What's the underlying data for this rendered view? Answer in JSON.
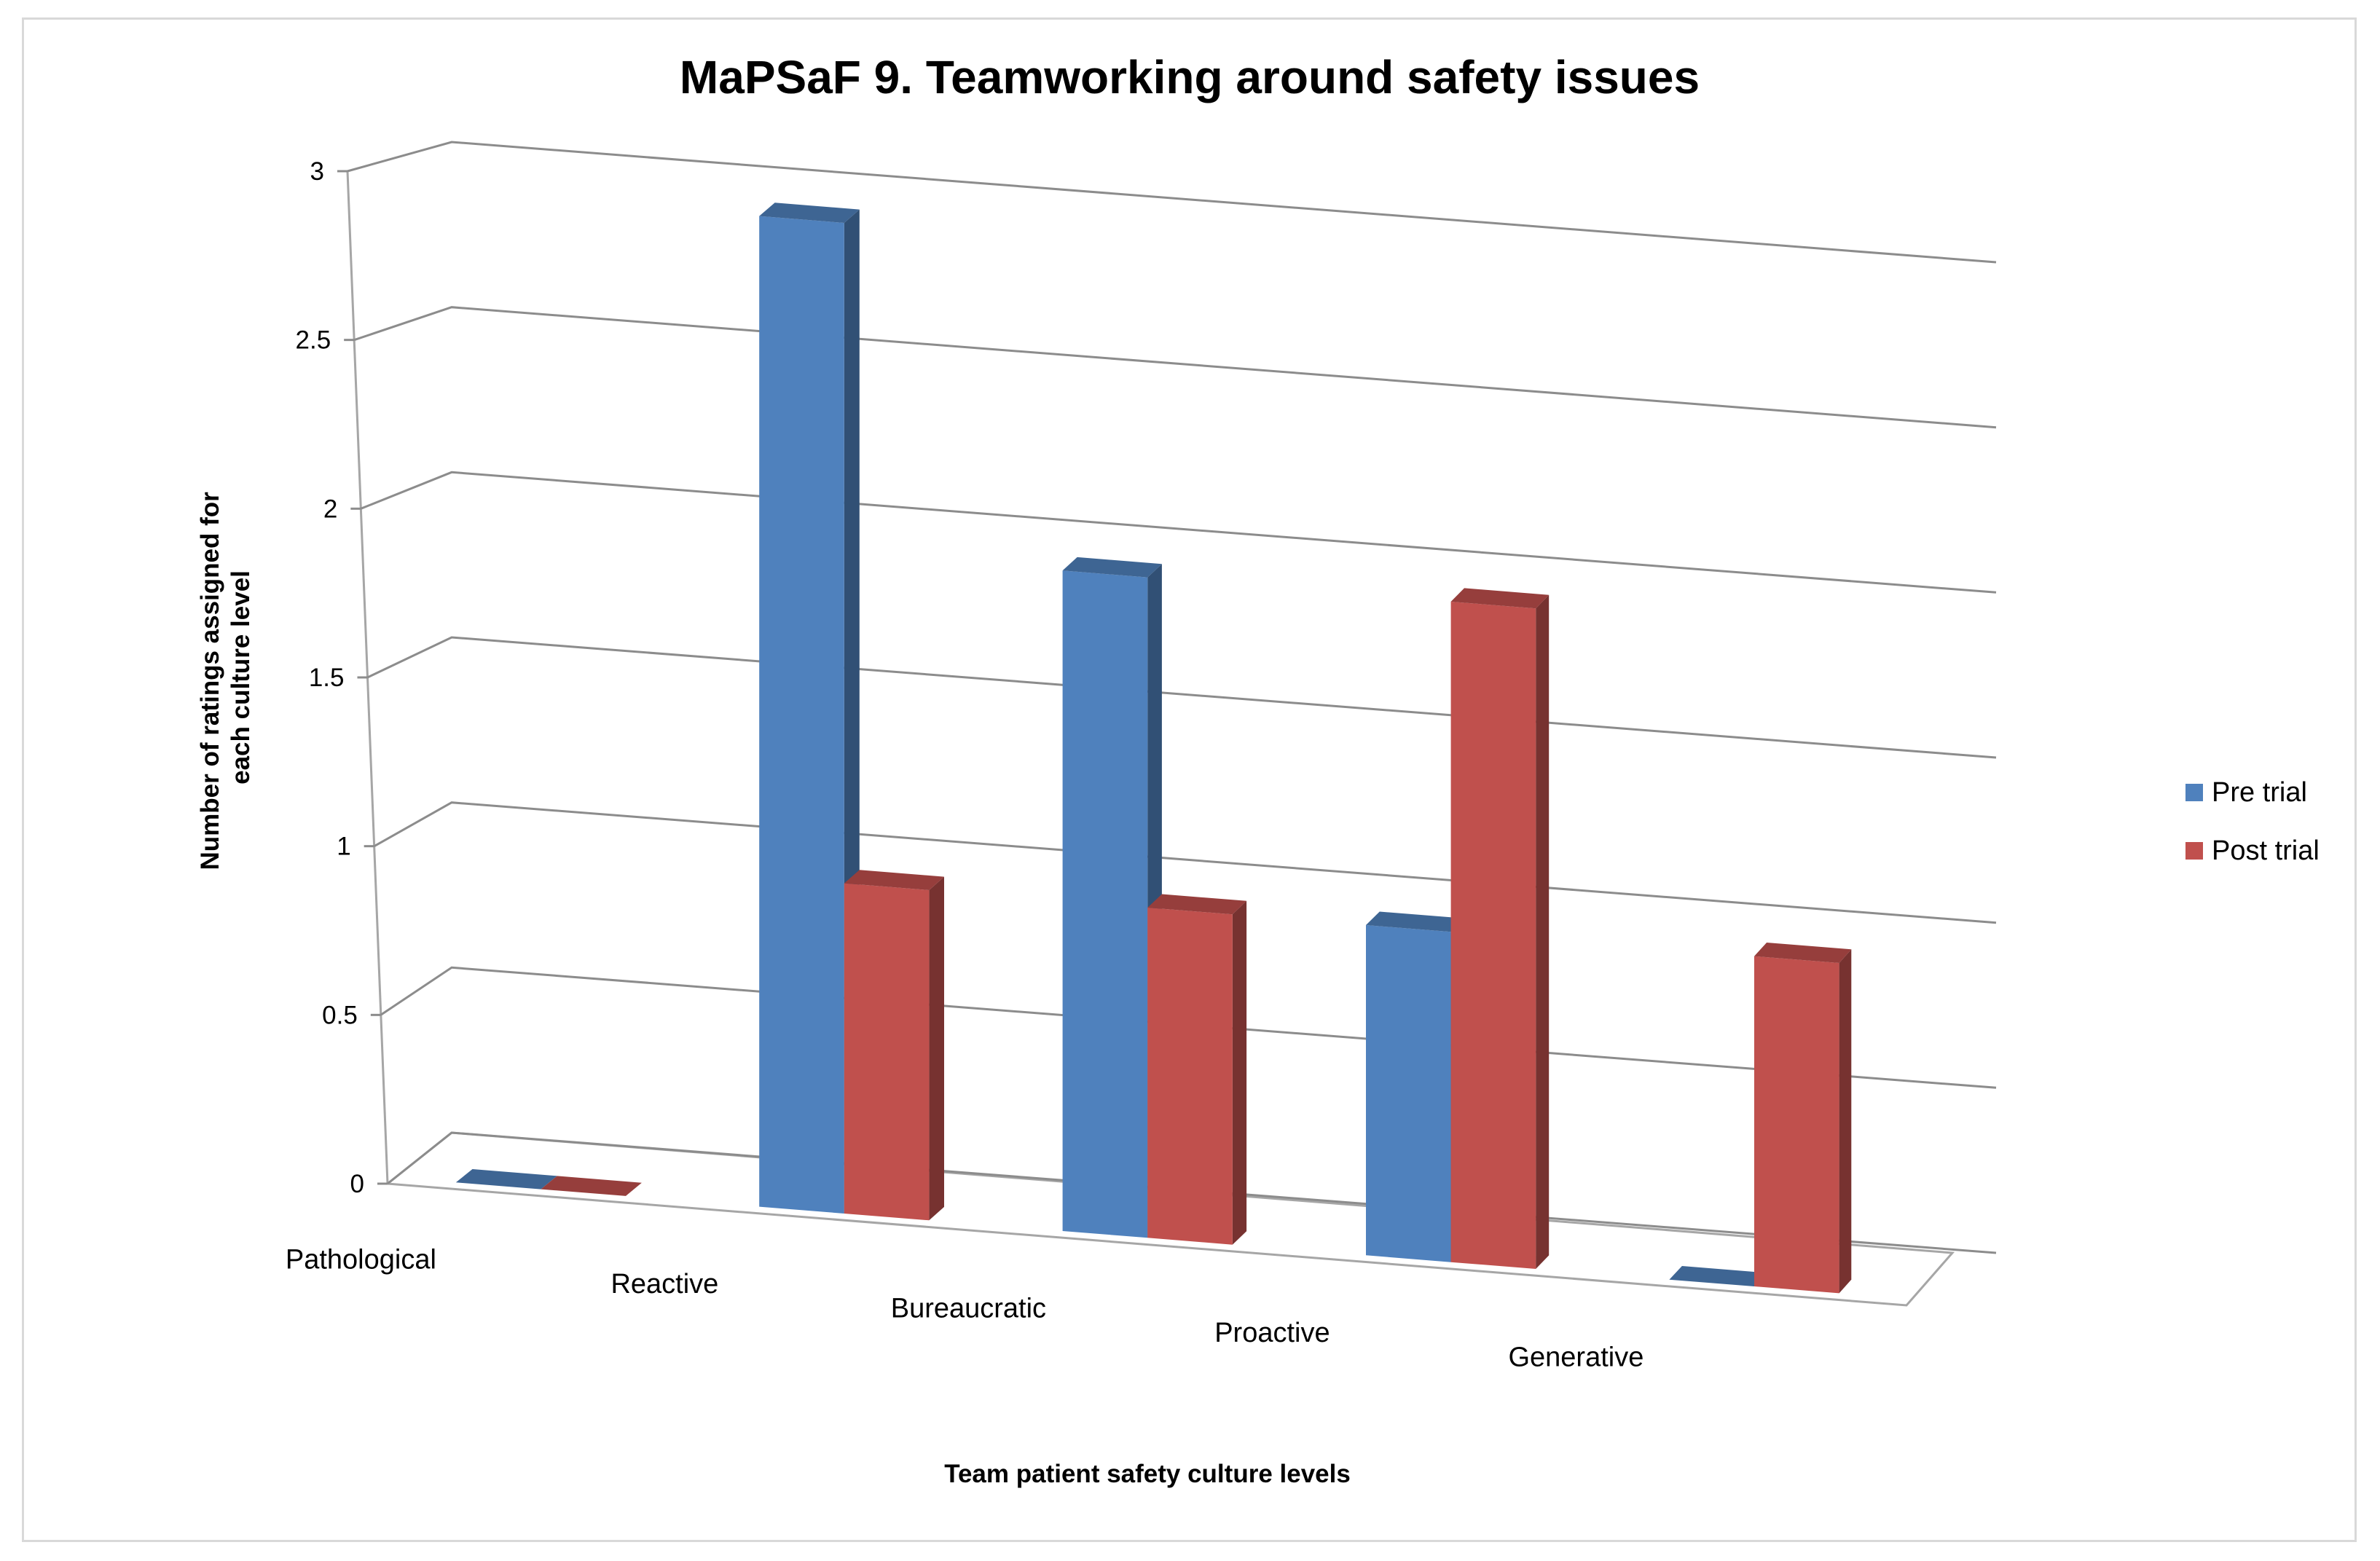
{
  "chart_data": {
    "type": "bar",
    "title": "MaPSaF 9. Teamworking around safety issues",
    "xlabel": "Team patient safety culture levels",
    "ylabel": "Number of ratings assigned for each culture level",
    "categories": [
      "Pathological",
      "Reactive",
      "Bureaucratic",
      "Proactive",
      "Generative"
    ],
    "series": [
      {
        "name": "Pre trial",
        "values": [
          0,
          3,
          2,
          1,
          0
        ],
        "color": "#4f81bd"
      },
      {
        "name": "Post trial",
        "values": [
          0,
          1,
          1,
          2,
          1
        ],
        "color": "#c0504d"
      }
    ],
    "yticks": [
      "0",
      "0.5",
      "1",
      "1.5",
      "2",
      "2.5",
      "3"
    ],
    "ylim": [
      0,
      3
    ],
    "grid": true,
    "legend_position": "right",
    "style": "3d-clustered-column"
  }
}
